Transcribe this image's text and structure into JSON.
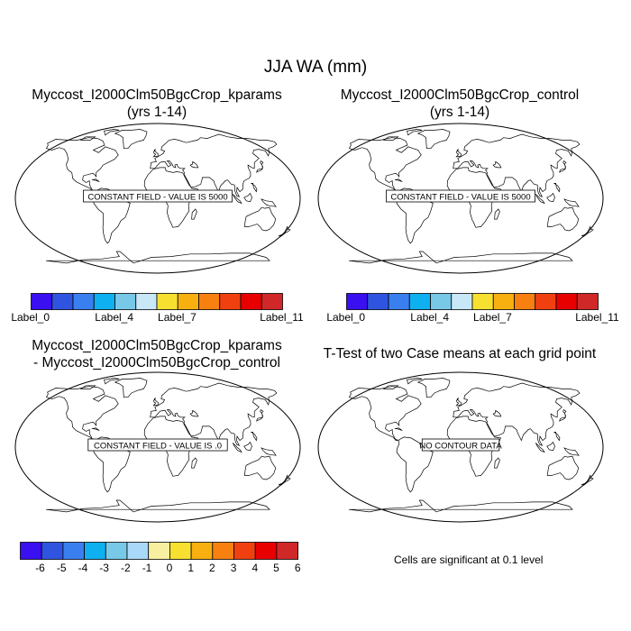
{
  "page": {
    "title": "JJA WA (mm)"
  },
  "panels": [
    {
      "id": "top-left",
      "title_line1": "Myccost_I2000Clm50BgcCrop_kparams",
      "title_line2": "(yrs 1-14)",
      "message": "CONSTANT FIELD - VALUE IS 5000"
    },
    {
      "id": "top-right",
      "title_line1": "Myccost_I2000Clm50BgcCrop_control",
      "title_line2": "(yrs 1-14)",
      "message": "CONSTANT FIELD - VALUE IS 5000"
    },
    {
      "id": "bottom-left",
      "title_line1": "Myccost_I2000Clm50BgcCrop_kparams",
      "title_line2": "- Myccost_I2000Clm50BgcCrop_control",
      "message": "CONSTANT FIELD - VALUE IS .0"
    },
    {
      "id": "bottom-right",
      "title_line1": "T-Test of two Case means at each grid point",
      "title_line2": "",
      "message": "NO CONTOUR DATA"
    }
  ],
  "colorbar_top": {
    "colors": [
      "#3a0ff0",
      "#2f55e0",
      "#3a7ff0",
      "#0fb0f0",
      "#78c8e8",
      "#c8e8f8",
      "#f8e030",
      "#f8b010",
      "#f88010",
      "#f04010",
      "#e80000",
      "#d02828"
    ],
    "labels": [
      "Label_0",
      "Label_4",
      "Label_7",
      "Label_11"
    ]
  },
  "colorbar_bottom": {
    "colors": [
      "#3a0ff0",
      "#2f55e0",
      "#3a7ff0",
      "#0fb0f0",
      "#78c8e8",
      "#aad8f8",
      "#f8f0a0",
      "#f8e030",
      "#f8b010",
      "#f88010",
      "#f04010",
      "#e80000",
      "#d02828"
    ],
    "labels": [
      "-6",
      "-5",
      "-4",
      "-3",
      "-2",
      "-1",
      "0",
      "1",
      "2",
      "3",
      "4",
      "5",
      "6"
    ]
  },
  "footnote": "Cells are significant at 0.1 level"
}
